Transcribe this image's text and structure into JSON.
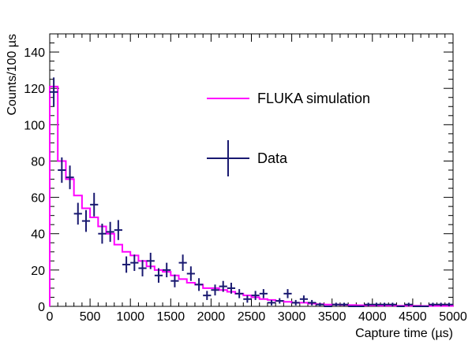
{
  "chart_data": {
    "type": "histogram-with-errorbars",
    "xlabel": "Capture time (µs)",
    "ylabel": "Counts/100 µs",
    "xlim": [
      0,
      5000
    ],
    "ylim": [
      0,
      150
    ],
    "x_ticks": [
      0,
      500,
      1000,
      1500,
      2000,
      2500,
      3000,
      3500,
      4000,
      4500,
      5000
    ],
    "y_ticks": [
      0,
      20,
      40,
      60,
      80,
      100,
      120,
      140
    ],
    "grid": false,
    "legend": {
      "position": "right",
      "entries": [
        {
          "label": "FLUKA simulation",
          "color": "#ff00ff",
          "style": "line"
        },
        {
          "label": "Data",
          "color": "#191970",
          "style": "errorbar"
        }
      ]
    },
    "series": [
      {
        "name": "FLUKA simulation",
        "kind": "step",
        "color": "#ff00ff",
        "bin_edges": [
          0,
          100,
          200,
          300,
          400,
          500,
          600,
          700,
          800,
          900,
          1000,
          1100,
          1200,
          1300,
          1400,
          1500,
          1600,
          1700,
          1800,
          1900,
          2000,
          2100,
          2200,
          2300,
          2400,
          2500,
          2600,
          2700,
          2800,
          2900,
          3000,
          3100,
          3200,
          3300,
          3400,
          3500,
          3600,
          3700,
          3800,
          3900,
          4000,
          4100,
          4200,
          4300,
          4400,
          4500,
          4600,
          4700,
          4800,
          4900,
          5000
        ],
        "values": [
          121,
          80,
          70,
          61,
          54,
          49,
          44,
          40,
          34,
          30,
          28,
          25,
          22,
          20,
          19,
          17,
          15,
          13,
          12,
          10,
          10,
          9,
          8,
          7,
          6,
          5,
          4,
          3.5,
          3,
          2.5,
          2,
          2,
          1.5,
          1.2,
          1,
          1,
          0.8,
          0.7,
          0.6,
          0.5,
          0.5,
          0.4,
          0.4,
          0.3,
          0.3,
          0.3,
          0.2,
          0.2,
          0.2,
          0.2
        ]
      },
      {
        "name": "Data",
        "kind": "errorbar",
        "color": "#191970",
        "x": [
          50,
          150,
          250,
          350,
          450,
          550,
          650,
          750,
          850,
          950,
          1050,
          1150,
          1250,
          1350,
          1450,
          1550,
          1650,
          1750,
          1850,
          1950,
          2050,
          2150,
          2250,
          2350,
          2450,
          2550,
          2650,
          2750,
          2850,
          2950,
          3050,
          3150,
          3250,
          3350,
          3450,
          3550,
          3650,
          3750,
          3850,
          3950,
          4050,
          4150,
          4250,
          4350,
          4450,
          4550,
          4650,
          4750,
          4850,
          4950
        ],
        "y": [
          118,
          75,
          71,
          51,
          47,
          56,
          40,
          41,
          42,
          23,
          24,
          21,
          25,
          17,
          20,
          14,
          24,
          18,
          12,
          6,
          9,
          11,
          10,
          7,
          4,
          6,
          7,
          2,
          3,
          7,
          2,
          4,
          2,
          1,
          0,
          1,
          1,
          0,
          0,
          1,
          1,
          1,
          1,
          0,
          1,
          0,
          0,
          1,
          1,
          1
        ],
        "yerr": [
          8,
          7,
          6.5,
          6,
          6,
          6.5,
          5.5,
          5.5,
          5.5,
          4.5,
          4.5,
          4.5,
          4.5,
          4,
          4,
          3.5,
          4.5,
          4,
          3.5,
          2.5,
          3,
          3,
          3,
          2.5,
          2,
          2.5,
          2.5,
          1.5,
          1.5,
          2.5,
          1.5,
          2,
          1.5,
          1,
          0,
          1,
          1,
          0,
          0,
          1,
          1,
          1,
          1,
          0,
          1,
          0,
          0,
          1,
          1,
          1
        ]
      }
    ]
  }
}
